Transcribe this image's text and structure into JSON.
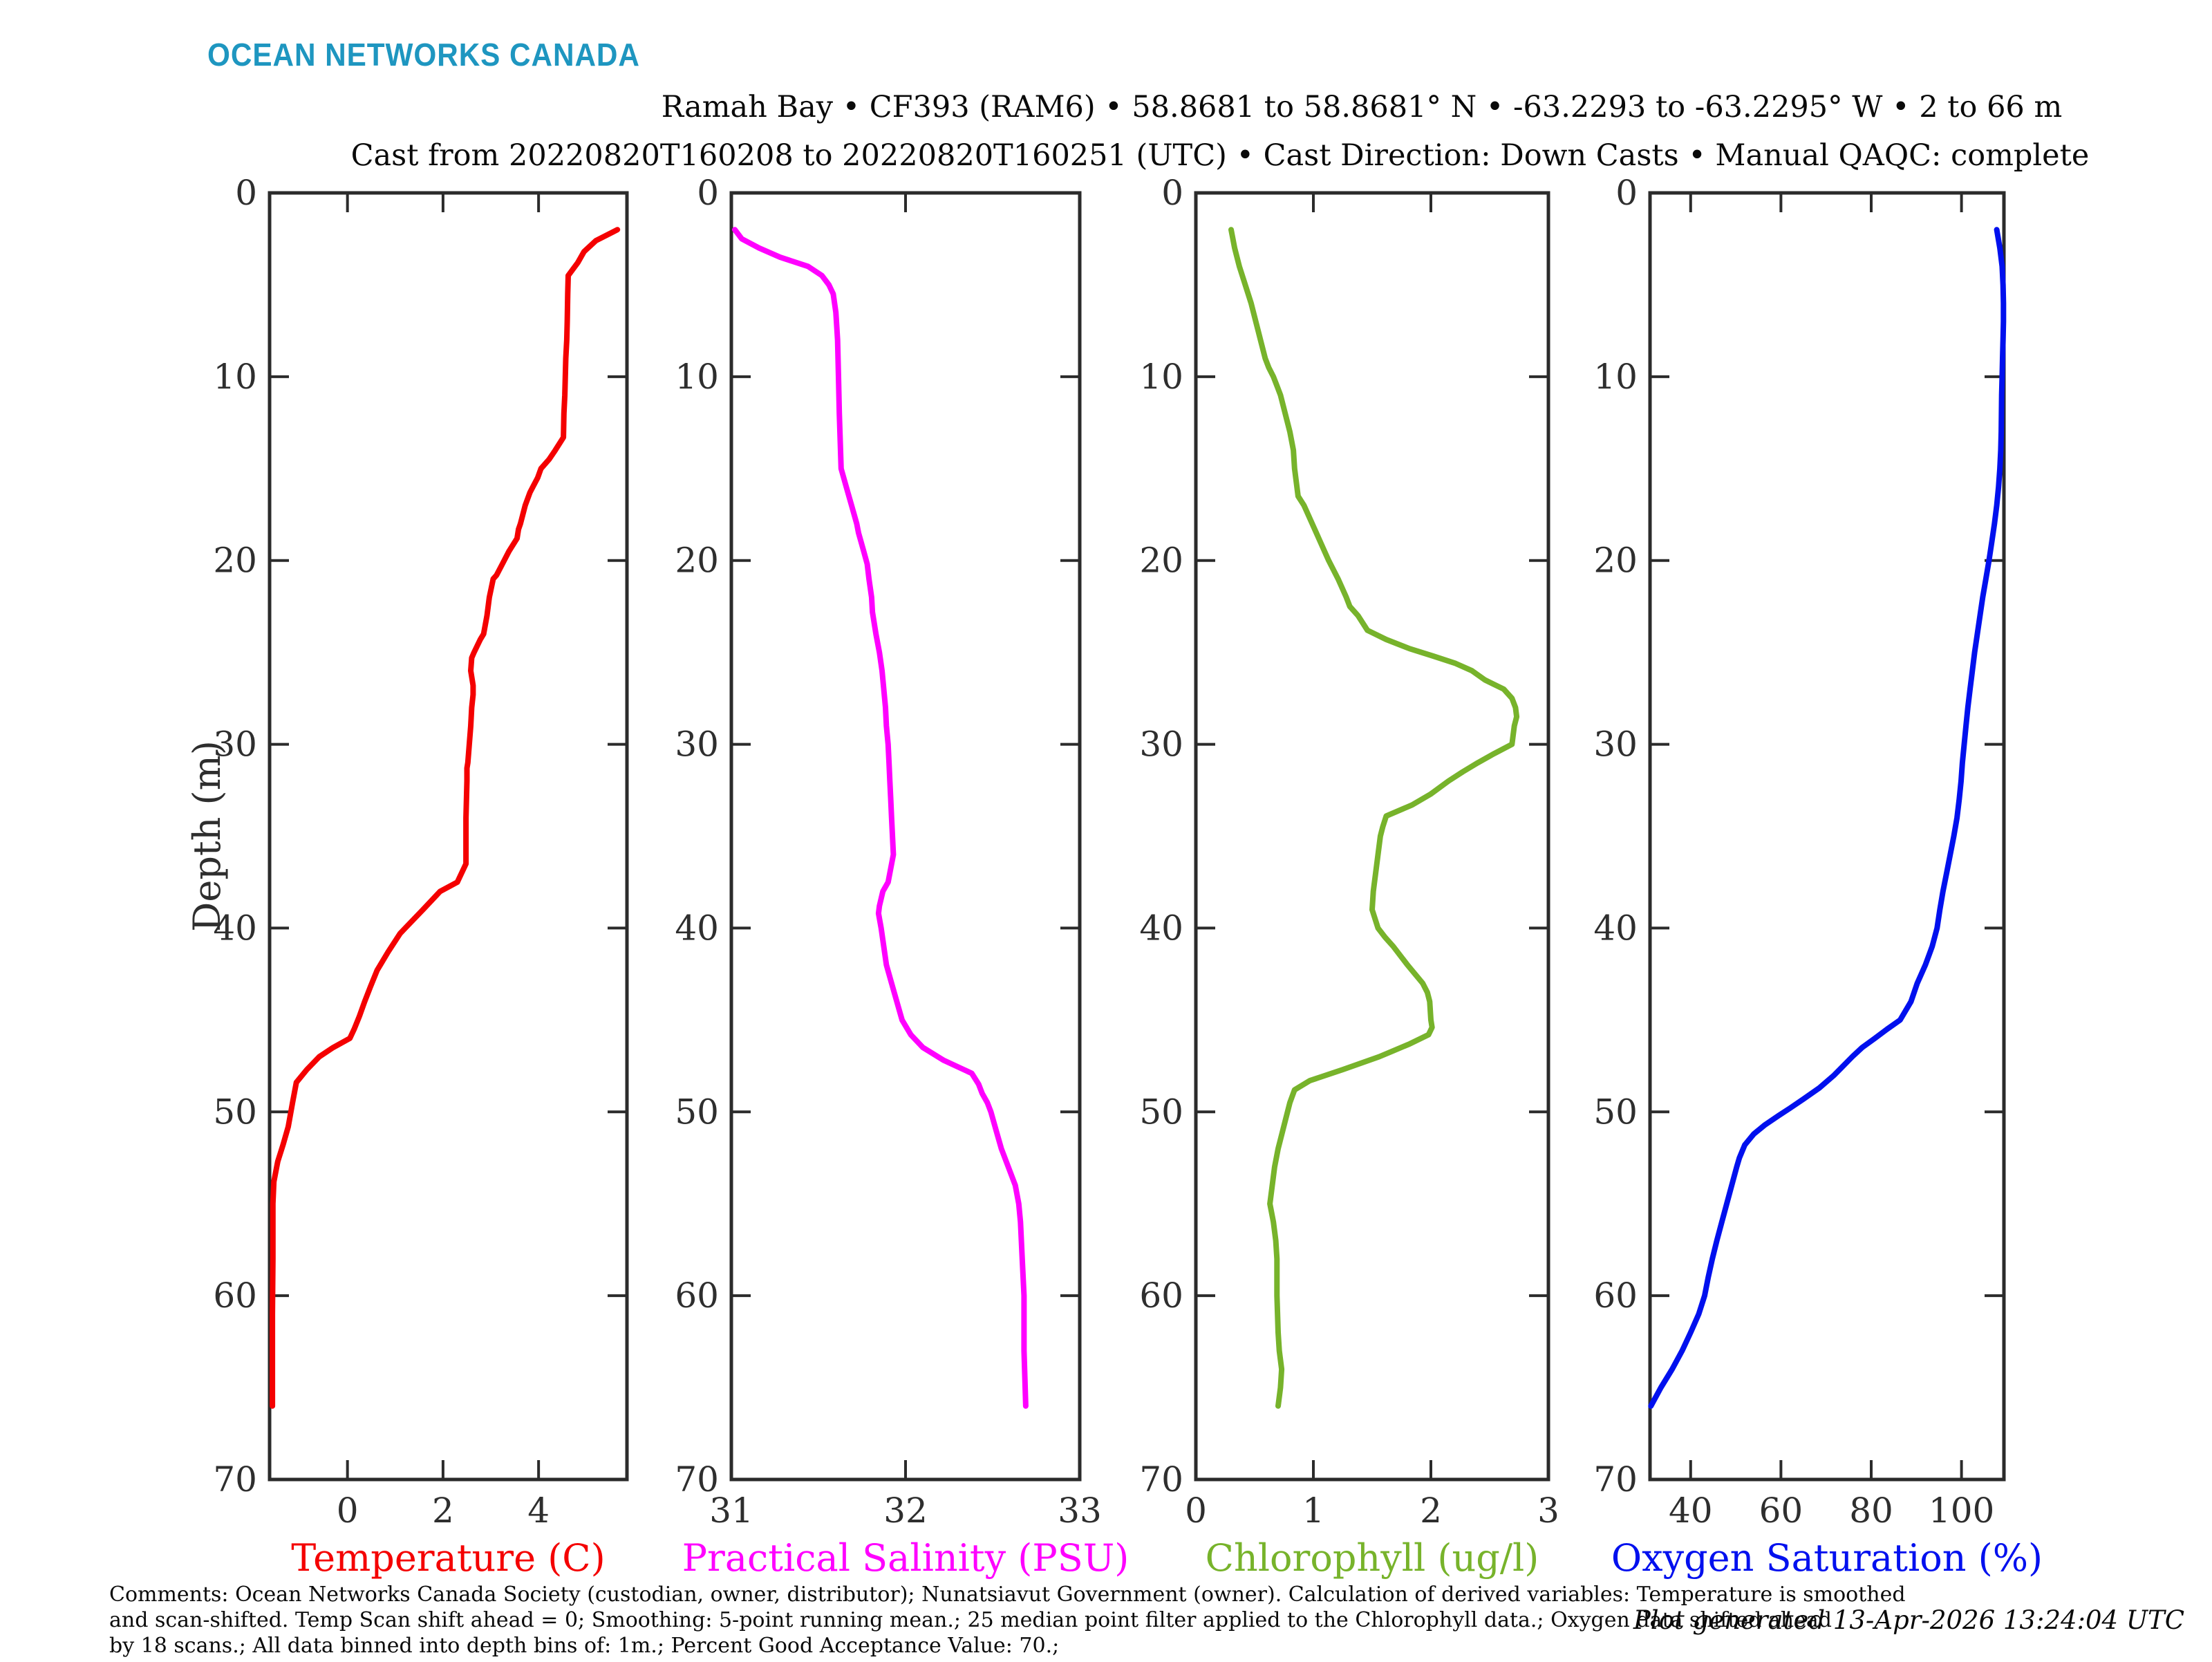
{
  "logo": {
    "text": "OCEAN NETWORKS CANADA",
    "color": "#1E96C0"
  },
  "header": {
    "title_line1": "Ramah Bay • CF393 (RAM6) • 58.8681 to 58.8681° N • -63.2293 to -63.2295° W • 2 to 66 m",
    "title_line2": "Cast from 20220820T160208 to 20220820T160251 (UTC) • Cast Direction: Down Casts • Manual QAQC: complete"
  },
  "footer": {
    "comment_line1": "Comments: Ocean Networks Canada Society (custodian, owner, distributor); Nunatsiavut Government (owner). Calculation of derived variables: Temperature is smoothed",
    "comment_line2": "and scan-shifted. Temp Scan shift ahead = 0; Smoothing: 5-point running mean.; 25 median point filter applied to the Chlorophyll data.; Oxygen data shifted ahead",
    "comment_line3": "by 18 scans.; All data binned into depth bins of: 1m.; Percent Good Acceptance Value: 70.;",
    "generated": "Plot generated 13-Apr-2026 13:24:04 UTC"
  },
  "axes": {
    "ylabel": "Depth (m)",
    "ylim": [
      0,
      70
    ],
    "yticks": [
      0,
      10,
      20,
      30,
      40,
      50,
      60,
      70
    ],
    "y_inverted": true,
    "axis_color": "#2b2b2b",
    "text_color": "#2e2e2e",
    "grid": false,
    "legend": "none"
  },
  "chart_data": [
    {
      "type": "line",
      "series_name": "temperature",
      "xlabel": "Temperature (C)",
      "color": "#F40000",
      "xlim": [
        -1.63,
        5.85
      ],
      "xticks": [
        0,
        2,
        4
      ],
      "ylabel": "Depth (m)",
      "ylim": [
        0,
        70
      ],
      "points": [
        [
          5.65,
          2
        ],
        [
          5.2,
          2.6
        ],
        [
          4.95,
          3.2
        ],
        [
          4.82,
          3.8
        ],
        [
          4.62,
          4.5
        ],
        [
          4.61,
          5.5
        ],
        [
          4.6,
          7
        ],
        [
          4.59,
          8
        ],
        [
          4.57,
          9
        ],
        [
          4.56,
          10
        ],
        [
          4.55,
          11
        ],
        [
          4.53,
          12
        ],
        [
          4.52,
          13.3
        ],
        [
          4.35,
          14
        ],
        [
          4.22,
          14.5
        ],
        [
          4.05,
          15
        ],
        [
          3.98,
          15.5
        ],
        [
          3.88,
          16
        ],
        [
          3.82,
          16.3
        ],
        [
          3.72,
          17
        ],
        [
          3.62,
          18
        ],
        [
          3.58,
          18.3
        ],
        [
          3.55,
          18.8
        ],
        [
          3.38,
          19.5
        ],
        [
          3.28,
          20
        ],
        [
          3.12,
          20.8
        ],
        [
          3.05,
          21
        ],
        [
          2.97,
          22
        ],
        [
          2.92,
          23
        ],
        [
          2.85,
          24
        ],
        [
          2.78,
          24.3
        ],
        [
          2.65,
          25
        ],
        [
          2.6,
          25.3
        ],
        [
          2.58,
          26
        ],
        [
          2.63,
          26.8
        ],
        [
          2.63,
          27.3
        ],
        [
          2.6,
          28
        ],
        [
          2.58,
          29
        ],
        [
          2.55,
          30
        ],
        [
          2.52,
          31
        ],
        [
          2.5,
          31.3
        ],
        [
          2.5,
          32
        ],
        [
          2.49,
          33
        ],
        [
          2.48,
          34
        ],
        [
          2.48,
          35
        ],
        [
          2.48,
          36.5
        ],
        [
          2.3,
          37.5
        ],
        [
          1.94,
          38
        ],
        [
          1.58,
          39
        ],
        [
          1.21,
          40
        ],
        [
          1.1,
          40.3
        ],
        [
          0.85,
          41.3
        ],
        [
          0.62,
          42.3
        ],
        [
          0.48,
          43.2
        ],
        [
          0.36,
          44
        ],
        [
          0.25,
          44.8
        ],
        [
          0.14,
          45.5
        ],
        [
          0.05,
          46
        ],
        [
          -0.3,
          46.5
        ],
        [
          -0.59,
          47
        ],
        [
          -0.85,
          47.7
        ],
        [
          -1.07,
          48.4
        ],
        [
          -1.15,
          49.5
        ],
        [
          -1.24,
          50.8
        ],
        [
          -1.35,
          51.8
        ],
        [
          -1.46,
          52.7
        ],
        [
          -1.54,
          53.8
        ],
        [
          -1.56,
          55
        ],
        [
          -1.56,
          58
        ],
        [
          -1.57,
          61
        ],
        [
          -1.57,
          66
        ]
      ]
    },
    {
      "type": "line",
      "series_name": "practical_salinity",
      "xlabel": "Practical Salinity (PSU)",
      "color": "#FF00FF",
      "xlim": [
        31,
        33
      ],
      "xticks": [
        31,
        32,
        33
      ],
      "ylabel": "Depth (m)",
      "ylim": [
        0,
        70
      ],
      "points": [
        [
          31.02,
          2
        ],
        [
          31.06,
          2.5
        ],
        [
          31.16,
          3
        ],
        [
          31.28,
          3.5
        ],
        [
          31.44,
          4
        ],
        [
          31.52,
          4.5
        ],
        [
          31.56,
          5
        ],
        [
          31.585,
          5.5
        ],
        [
          31.6,
          6.5
        ],
        [
          31.61,
          8
        ],
        [
          31.615,
          10
        ],
        [
          31.62,
          12
        ],
        [
          31.625,
          13.5
        ],
        [
          31.63,
          15
        ],
        [
          31.66,
          16
        ],
        [
          31.69,
          17
        ],
        [
          31.72,
          18
        ],
        [
          31.73,
          18.5
        ],
        [
          31.76,
          19.5
        ],
        [
          31.78,
          20.2
        ],
        [
          31.79,
          21
        ],
        [
          31.805,
          22
        ],
        [
          31.81,
          22.8
        ],
        [
          31.83,
          24
        ],
        [
          31.85,
          25
        ],
        [
          31.865,
          26
        ],
        [
          31.875,
          27
        ],
        [
          31.885,
          28
        ],
        [
          31.89,
          29
        ],
        [
          31.9,
          30
        ],
        [
          31.905,
          31
        ],
        [
          31.91,
          32
        ],
        [
          31.915,
          33
        ],
        [
          31.92,
          34
        ],
        [
          31.925,
          35
        ],
        [
          31.93,
          36
        ],
        [
          31.9,
          37.5
        ],
        [
          31.87,
          38
        ],
        [
          31.85,
          38.8
        ],
        [
          31.845,
          39.2
        ],
        [
          31.86,
          40
        ],
        [
          31.875,
          41
        ],
        [
          31.89,
          42
        ],
        [
          31.92,
          43
        ],
        [
          31.95,
          44
        ],
        [
          31.98,
          45
        ],
        [
          32.03,
          45.8
        ],
        [
          32.1,
          46.5
        ],
        [
          32.22,
          47.2
        ],
        [
          32.38,
          47.9
        ],
        [
          32.42,
          48.5
        ],
        [
          32.44,
          49
        ],
        [
          32.47,
          49.5
        ],
        [
          32.49,
          50
        ],
        [
          32.52,
          51
        ],
        [
          32.55,
          52
        ],
        [
          32.59,
          53
        ],
        [
          32.63,
          54
        ],
        [
          32.65,
          55
        ],
        [
          32.66,
          56
        ],
        [
          32.67,
          58
        ],
        [
          32.68,
          60
        ],
        [
          32.68,
          63
        ],
        [
          32.69,
          66
        ]
      ]
    },
    {
      "type": "line",
      "series_name": "chlorophyll",
      "xlabel": "Chlorophyll (ug/l)",
      "color": "#77B32B",
      "xlim": [
        0,
        3
      ],
      "xticks": [
        0,
        1,
        2,
        3
      ],
      "ylabel": "Depth (m)",
      "ylim": [
        0,
        70
      ],
      "points": [
        [
          0.3,
          2
        ],
        [
          0.33,
          3
        ],
        [
          0.37,
          4
        ],
        [
          0.42,
          5
        ],
        [
          0.47,
          6
        ],
        [
          0.51,
          7
        ],
        [
          0.53,
          7.5
        ],
        [
          0.55,
          8
        ],
        [
          0.59,
          9
        ],
        [
          0.62,
          9.5
        ],
        [
          0.66,
          10
        ],
        [
          0.69,
          10.5
        ],
        [
          0.72,
          11
        ],
        [
          0.76,
          12
        ],
        [
          0.8,
          13
        ],
        [
          0.83,
          14
        ],
        [
          0.84,
          15
        ],
        [
          0.86,
          16
        ],
        [
          0.87,
          16.5
        ],
        [
          0.92,
          17
        ],
        [
          0.99,
          18
        ],
        [
          1.06,
          19
        ],
        [
          1.13,
          20
        ],
        [
          1.21,
          21
        ],
        [
          1.28,
          22
        ],
        [
          1.31,
          22.5
        ],
        [
          1.38,
          23
        ],
        [
          1.46,
          23.8
        ],
        [
          1.62,
          24.3
        ],
        [
          1.82,
          24.8
        ],
        [
          2.02,
          25.2
        ],
        [
          2.21,
          25.6
        ],
        [
          2.35,
          26
        ],
        [
          2.46,
          26.5
        ],
        [
          2.62,
          27
        ],
        [
          2.69,
          27.5
        ],
        [
          2.72,
          28
        ],
        [
          2.73,
          28.5
        ],
        [
          2.71,
          29
        ],
        [
          2.7,
          29.5
        ],
        [
          2.69,
          30
        ],
        [
          2.54,
          30.5
        ],
        [
          2.4,
          31
        ],
        [
          2.27,
          31.5
        ],
        [
          2.15,
          32
        ],
        [
          2.0,
          32.7
        ],
        [
          1.84,
          33.3
        ],
        [
          1.62,
          33.9
        ],
        [
          1.59,
          34.5
        ],
        [
          1.57,
          35
        ],
        [
          1.55,
          36
        ],
        [
          1.53,
          37
        ],
        [
          1.51,
          38
        ],
        [
          1.5,
          39
        ],
        [
          1.55,
          40
        ],
        [
          1.61,
          40.5
        ],
        [
          1.68,
          41
        ],
        [
          1.8,
          42
        ],
        [
          1.93,
          43
        ],
        [
          1.97,
          43.5
        ],
        [
          1.99,
          44
        ],
        [
          2.0,
          45
        ],
        [
          2.01,
          45.4
        ],
        [
          1.98,
          45.8
        ],
        [
          1.82,
          46.3
        ],
        [
          1.56,
          47
        ],
        [
          1.25,
          47.7
        ],
        [
          0.97,
          48.3
        ],
        [
          0.84,
          48.8
        ],
        [
          0.8,
          49.5
        ],
        [
          0.78,
          50
        ],
        [
          0.74,
          51
        ],
        [
          0.7,
          52
        ],
        [
          0.67,
          53
        ],
        [
          0.65,
          54
        ],
        [
          0.63,
          55
        ],
        [
          0.66,
          56
        ],
        [
          0.68,
          57
        ],
        [
          0.69,
          58
        ],
        [
          0.69,
          60
        ],
        [
          0.7,
          62
        ],
        [
          0.71,
          63
        ],
        [
          0.73,
          64
        ],
        [
          0.72,
          65
        ],
        [
          0.7,
          66
        ]
      ]
    },
    {
      "type": "line",
      "series_name": "oxygen_saturation",
      "xlabel": "Oxygen Saturation (%)",
      "color": "#0010EE",
      "xlim": [
        31,
        109.4
      ],
      "xticks": [
        40,
        60,
        80,
        100
      ],
      "ylabel": "Depth (m)",
      "ylim": [
        0,
        70
      ],
      "points": [
        [
          107.8,
          2
        ],
        [
          108.5,
          3
        ],
        [
          109.0,
          4
        ],
        [
          109.2,
          5
        ],
        [
          109.3,
          6
        ],
        [
          109.3,
          7
        ],
        [
          109.2,
          8
        ],
        [
          109.1,
          9
        ],
        [
          109.0,
          10
        ],
        [
          108.9,
          11
        ],
        [
          108.85,
          12
        ],
        [
          108.8,
          13
        ],
        [
          108.7,
          14
        ],
        [
          108.5,
          15
        ],
        [
          108.2,
          16
        ],
        [
          107.8,
          17
        ],
        [
          107.3,
          18
        ],
        [
          106.7,
          19
        ],
        [
          106.1,
          20
        ],
        [
          105.4,
          21
        ],
        [
          104.7,
          22
        ],
        [
          104.1,
          23
        ],
        [
          103.5,
          24
        ],
        [
          102.9,
          25
        ],
        [
          102.4,
          26
        ],
        [
          101.9,
          27
        ],
        [
          101.4,
          28
        ],
        [
          101.0,
          29
        ],
        [
          100.6,
          30
        ],
        [
          100.2,
          31
        ],
        [
          99.9,
          32
        ],
        [
          99.5,
          33
        ],
        [
          99.0,
          34
        ],
        [
          98.3,
          35
        ],
        [
          97.5,
          36
        ],
        [
          96.7,
          37
        ],
        [
          95.9,
          38
        ],
        [
          95.2,
          39
        ],
        [
          94.6,
          40
        ],
        [
          93.5,
          41
        ],
        [
          92.0,
          42
        ],
        [
          90.2,
          43
        ],
        [
          88.8,
          44
        ],
        [
          86.4,
          45
        ],
        [
          83.5,
          45.5
        ],
        [
          80.8,
          46
        ],
        [
          78.0,
          46.5
        ],
        [
          75.8,
          47
        ],
        [
          73.8,
          47.5
        ],
        [
          71.8,
          48
        ],
        [
          68.5,
          48.7
        ],
        [
          65.0,
          49.3
        ],
        [
          62.0,
          49.8
        ],
        [
          59.5,
          50.2
        ],
        [
          56.5,
          50.7
        ],
        [
          54.0,
          51.2
        ],
        [
          52.0,
          51.8
        ],
        [
          50.8,
          52.5
        ],
        [
          50.2,
          53
        ],
        [
          49.1,
          54
        ],
        [
          48.0,
          55
        ],
        [
          46.9,
          56
        ],
        [
          45.8,
          57
        ],
        [
          44.8,
          58
        ],
        [
          43.9,
          59
        ],
        [
          43.1,
          60
        ],
        [
          41.8,
          61
        ],
        [
          40.0,
          62
        ],
        [
          38.1,
          63
        ],
        [
          35.9,
          64
        ],
        [
          33.4,
          65
        ],
        [
          31.2,
          66
        ]
      ]
    }
  ]
}
